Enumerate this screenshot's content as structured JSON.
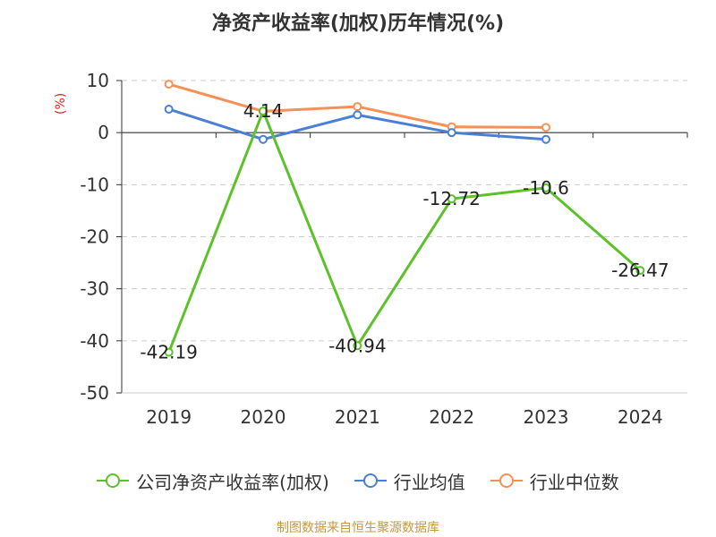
{
  "chart_data": {
    "type": "line",
    "title": "净资产收益率(加权)历年情况(%)",
    "ylabel": "(%)",
    "categories": [
      "2019",
      "2020",
      "2021",
      "2022",
      "2023",
      "2024"
    ],
    "ylim": [
      -50,
      10
    ],
    "yticks": [
      10,
      0,
      -10,
      -20,
      -30,
      -40,
      -50
    ],
    "grid": true,
    "legend_position": "bottom",
    "series": [
      {
        "name": "公司净资产收益率(加权)",
        "color": "#5cc12a",
        "values": [
          -42.19,
          4.14,
          -40.94,
          -12.72,
          -10.6,
          -26.47
        ],
        "labels": [
          "-42.19",
          "4.14",
          "-40.94",
          "-12.72",
          "-10.6",
          "-26.47"
        ]
      },
      {
        "name": "行业均值",
        "color": "#4a7fd8",
        "values": [
          4.5,
          -1.3,
          3.4,
          0.0,
          -1.3,
          null
        ]
      },
      {
        "name": "行业中位数",
        "color": "#f79055",
        "values": [
          9.3,
          4.1,
          5.0,
          1.1,
          1.0,
          null
        ]
      }
    ]
  },
  "source": "制图数据来自恒生聚源数据库"
}
